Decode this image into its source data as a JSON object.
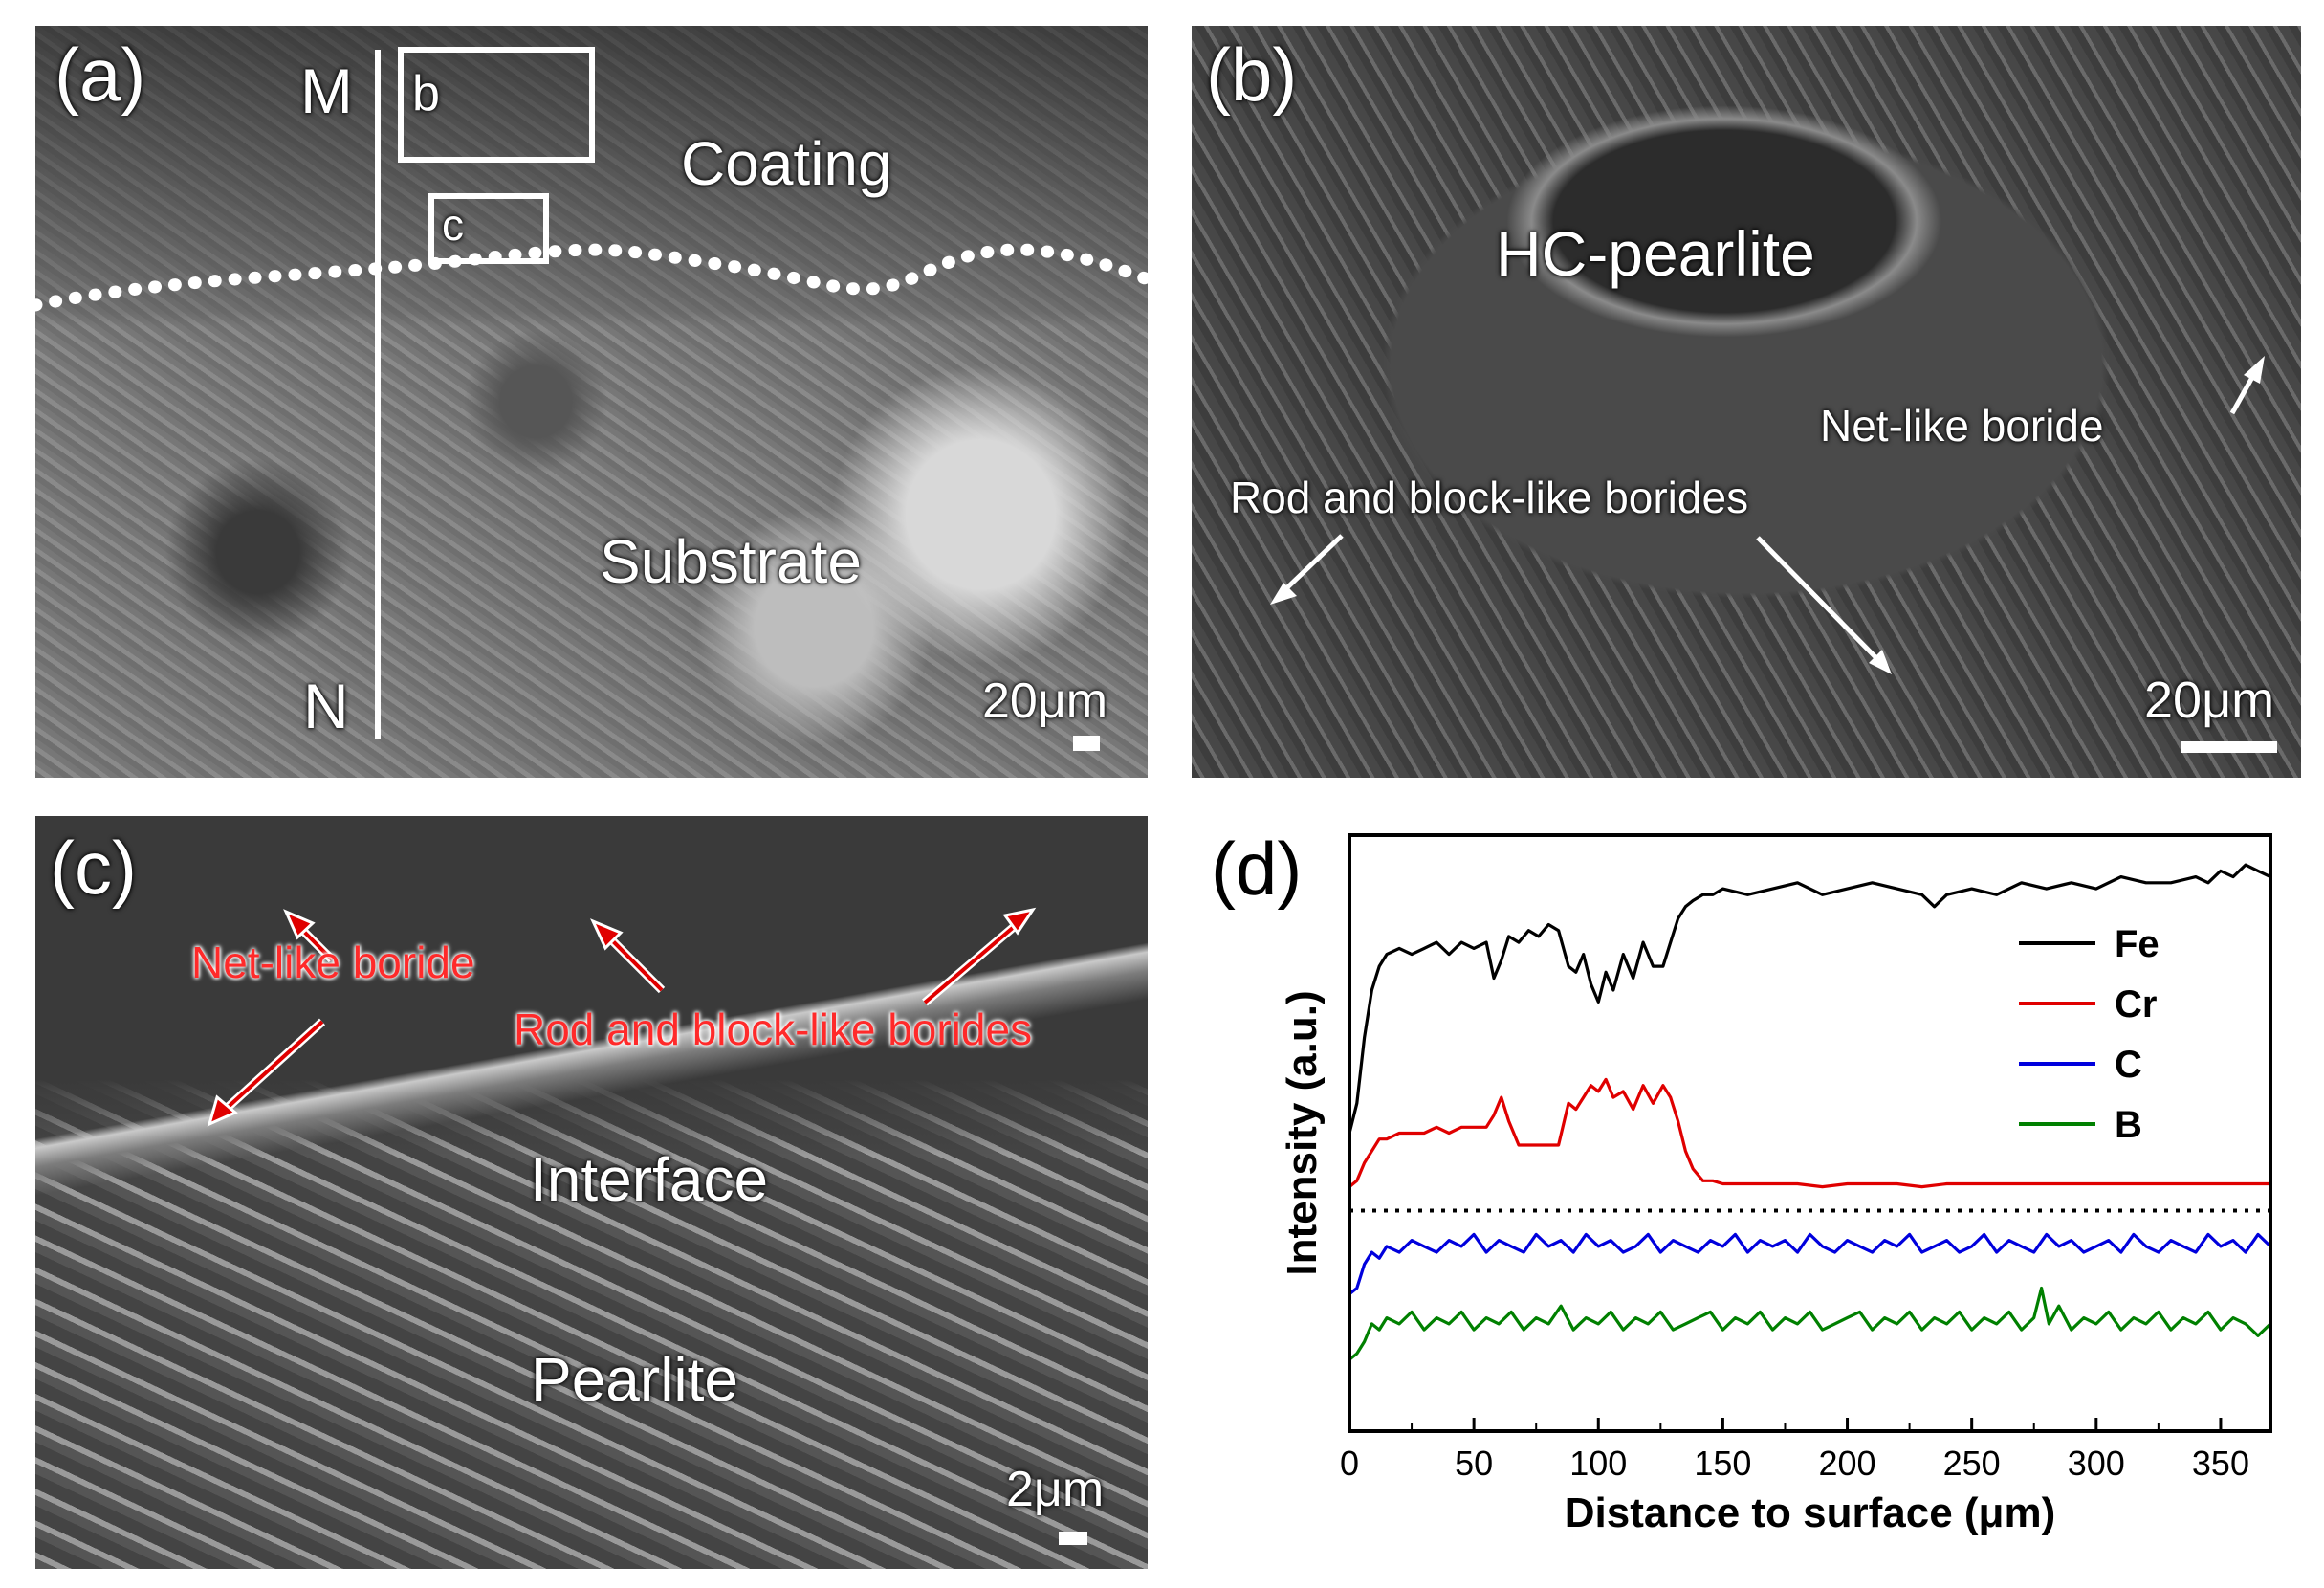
{
  "panel_a": {
    "letter": "(a)",
    "line_start": "M",
    "line_end": "N",
    "box_b": "b",
    "box_c": "c",
    "region_coating": "Coating",
    "region_substrate": "Substrate",
    "scale": "20μm"
  },
  "panel_b": {
    "letter": "(b)",
    "center_label": "HC-pearlite",
    "net_label": "Net-like boride",
    "rod_label": "Rod and block-like borides",
    "scale": "20μm"
  },
  "panel_c": {
    "letter": "(c)",
    "net_label": "Net-like boride",
    "rod_label": "Rod and block-like borides",
    "interface_label": "Interface",
    "pearlite_label": "Pearlite",
    "scale": "2μm"
  },
  "panel_d": {
    "letter": "(d)"
  },
  "chart_data": {
    "type": "line",
    "xlabel": "Distance to surface (μm)",
    "ylabel": "Intensity (a.u.)",
    "xlim": [
      0,
      370
    ],
    "xticks": [
      0,
      50,
      100,
      150,
      200,
      250,
      300,
      350
    ],
    "y_scale": "arbitrary units, stacked profiles",
    "ylim": [
      0,
      100
    ],
    "separator_y": 37,
    "grid": false,
    "legend_position": "top-right",
    "series": [
      {
        "name": "Fe",
        "color": "#000000",
        "x": [
          0,
          3,
          6,
          9,
          12,
          15,
          20,
          25,
          30,
          35,
          40,
          45,
          50,
          55,
          58,
          61,
          64,
          68,
          72,
          76,
          80,
          84,
          88,
          91,
          94,
          97,
          100,
          103,
          106,
          110,
          114,
          118,
          122,
          126,
          129,
          132,
          135,
          138,
          142,
          146,
          150,
          160,
          170,
          180,
          190,
          200,
          210,
          220,
          230,
          235,
          240,
          250,
          260,
          270,
          280,
          290,
          300,
          310,
          320,
          330,
          340,
          345,
          350,
          355,
          360,
          365,
          370
        ],
        "y": [
          50,
          55,
          66,
          74,
          78,
          80,
          81,
          80,
          81,
          82,
          80,
          82,
          81,
          82,
          76,
          79,
          83,
          82,
          84,
          83,
          85,
          84,
          78,
          77,
          80,
          75,
          72,
          77,
          74,
          80,
          76,
          82,
          78,
          78,
          82,
          86,
          88,
          89,
          90,
          90,
          91,
          90,
          91,
          92,
          90,
          91,
          92,
          91,
          90,
          88,
          90,
          91,
          90,
          92,
          91,
          92,
          91,
          93,
          92,
          92,
          93,
          92,
          94,
          93,
          95,
          94,
          93
        ]
      },
      {
        "name": "Cr",
        "color": "#e00000",
        "x": [
          0,
          3,
          6,
          9,
          12,
          15,
          20,
          25,
          30,
          35,
          40,
          45,
          50,
          55,
          58,
          61,
          64,
          68,
          72,
          76,
          80,
          84,
          88,
          91,
          94,
          97,
          100,
          103,
          106,
          110,
          114,
          118,
          122,
          126,
          129,
          132,
          135,
          138,
          142,
          146,
          150,
          160,
          170,
          180,
          190,
          200,
          210,
          220,
          230,
          240,
          250,
          260,
          270,
          280,
          290,
          300,
          310,
          320,
          330,
          340,
          350,
          360,
          370
        ],
        "y": [
          41,
          42,
          45,
          47,
          49,
          49,
          50,
          50,
          50,
          51,
          50,
          51,
          51,
          51,
          53,
          56,
          52,
          48,
          48,
          48,
          48,
          48,
          55,
          54,
          56,
          58,
          57,
          59,
          56,
          57,
          54,
          58,
          55,
          58,
          56,
          52,
          47,
          44,
          42,
          42,
          41.5,
          41.5,
          41.5,
          41.5,
          41,
          41.5,
          41.5,
          41.5,
          41,
          41.5,
          41.5,
          41.5,
          41.5,
          41.5,
          41.5,
          41.5,
          41.5,
          41.5,
          41.5,
          41.5,
          41.5,
          41.5,
          41.5
        ]
      },
      {
        "name": "C",
        "color": "#0000dd",
        "x": [
          0,
          3,
          6,
          9,
          12,
          15,
          20,
          25,
          30,
          35,
          40,
          45,
          50,
          55,
          60,
          65,
          70,
          75,
          80,
          85,
          90,
          95,
          100,
          105,
          110,
          115,
          120,
          125,
          130,
          135,
          140,
          145,
          150,
          155,
          160,
          165,
          170,
          175,
          180,
          185,
          190,
          195,
          200,
          205,
          210,
          215,
          220,
          225,
          230,
          235,
          240,
          245,
          250,
          255,
          260,
          265,
          270,
          275,
          280,
          285,
          290,
          295,
          300,
          305,
          310,
          315,
          320,
          325,
          330,
          335,
          340,
          345,
          350,
          355,
          360,
          365,
          370
        ],
        "y": [
          23,
          24,
          28,
          30,
          29,
          31,
          30,
          32,
          31,
          30,
          32,
          31,
          33,
          30,
          32,
          31,
          30,
          33,
          31,
          32,
          30,
          33,
          31,
          32,
          30,
          31,
          33,
          30,
          32,
          31,
          30,
          32,
          31,
          33,
          30,
          32,
          31,
          32,
          30,
          33,
          31,
          30,
          32,
          31,
          30,
          32,
          31,
          33,
          30,
          31,
          32,
          30,
          31,
          33,
          30,
          32,
          31,
          30,
          33,
          31,
          32,
          30,
          31,
          32,
          30,
          33,
          31,
          30,
          32,
          31,
          30,
          33,
          31,
          32,
          30,
          33,
          31
        ]
      },
      {
        "name": "B",
        "color": "#008000",
        "x": [
          0,
          3,
          6,
          9,
          12,
          15,
          20,
          25,
          30,
          35,
          40,
          45,
          50,
          55,
          60,
          65,
          70,
          75,
          80,
          85,
          90,
          95,
          100,
          105,
          110,
          115,
          120,
          125,
          130,
          135,
          140,
          145,
          150,
          155,
          160,
          165,
          170,
          175,
          180,
          185,
          190,
          195,
          200,
          205,
          210,
          215,
          220,
          225,
          230,
          235,
          240,
          245,
          250,
          255,
          260,
          265,
          270,
          275,
          278,
          281,
          285,
          290,
          295,
          300,
          305,
          310,
          315,
          320,
          325,
          330,
          335,
          340,
          345,
          350,
          355,
          360,
          365,
          370
        ],
        "y": [
          12,
          13,
          15,
          18,
          17,
          19,
          18,
          20,
          17,
          19,
          18,
          20,
          17,
          19,
          18,
          20,
          17,
          19,
          18,
          21,
          17,
          19,
          18,
          20,
          17,
          19,
          18,
          20,
          17,
          18,
          19,
          20,
          17,
          19,
          18,
          20,
          17,
          19,
          18,
          20,
          17,
          18,
          19,
          20,
          17,
          19,
          18,
          20,
          17,
          19,
          18,
          20,
          17,
          19,
          18,
          20,
          17,
          19,
          24,
          18,
          21,
          17,
          19,
          18,
          20,
          17,
          19,
          18,
          20,
          17,
          19,
          18,
          20,
          17,
          19,
          18,
          16,
          18
        ]
      }
    ]
  }
}
